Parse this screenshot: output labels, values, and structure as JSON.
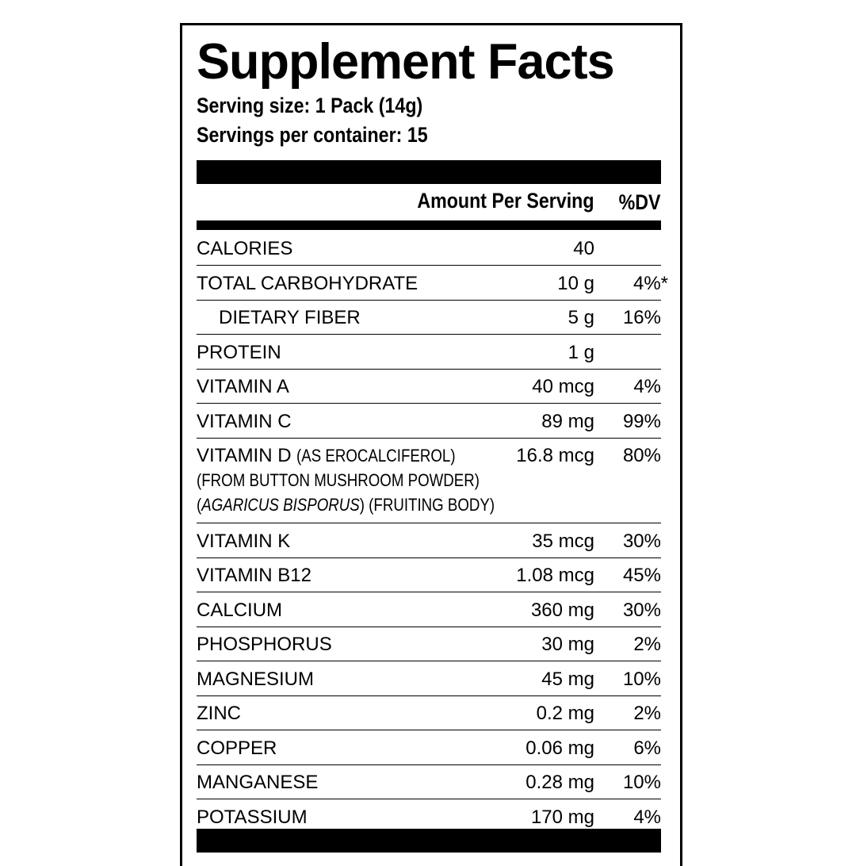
{
  "header": {
    "title": "Supplement Facts",
    "serving_size_label": "Serving size:",
    "serving_size": "1 Pack (14g)",
    "servings_label": "Servings per container:",
    "servings": "15"
  },
  "table": {
    "columns": [
      "Amount Per Serving",
      "%DV"
    ],
    "rows": [
      {
        "name": "CALORIES",
        "amount": "40"
      },
      {
        "name": "TOTAL CARBOHYDRATE",
        "amount": "10 g",
        "dv": "4%*"
      },
      {
        "name": "DIETARY FIBER",
        "amount": "5 g",
        "dv": "16%",
        "indent": true
      },
      {
        "name": "PROTEIN",
        "amount": "1 g"
      },
      {
        "name": "VITAMIN A",
        "amount": "40 mcg",
        "dv": "4%"
      },
      {
        "name": "VITAMIN C",
        "amount": "89 mg",
        "dv": "99%"
      },
      {
        "name": "VITAMIN D",
        "note": "(AS EROCALCIFEROL)",
        "note_lines": [
          [
            "(FROM BUTTON MUSHROOM POWDER)"
          ],
          [
            "(",
            "AGARICUS BISPORUS",
            ") (FRUITING BODY)"
          ]
        ],
        "amount": "16.8 mcg",
        "dv": "80%"
      },
      {
        "name": "VITAMIN K",
        "amount": "35 mcg",
        "dv": "30%"
      },
      {
        "name": "VITAMIN B12",
        "amount": "1.08 mcg",
        "dv": "45%"
      },
      {
        "name": "CALCIUM",
        "amount": "360 mg",
        "dv": "30%"
      },
      {
        "name": "PHOSPHORUS",
        "amount": "30 mg",
        "dv": "2%"
      },
      {
        "name": "MAGNESIUM",
        "amount": "45 mg",
        "dv": "10%"
      },
      {
        "name": "ZINC",
        "amount": "0.2 mg",
        "dv": "2%"
      },
      {
        "name": "COPPER",
        "amount": "0.06 mg",
        "dv": "6%"
      },
      {
        "name": "MANGANESE",
        "amount": "0.28 mg",
        "dv": "10%"
      },
      {
        "name": "POTASSIUM",
        "amount": "170 mg",
        "dv": "4%"
      }
    ]
  }
}
